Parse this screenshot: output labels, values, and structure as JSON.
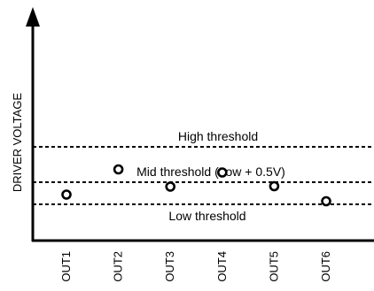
{
  "chart_data": {
    "type": "scatter",
    "title": "",
    "xlabel": "",
    "ylabel": "DRIVER VOLTAGE",
    "categories": [
      "OUT1",
      "OUT2",
      "OUT3",
      "OUT4",
      "OUT5",
      "OUT6"
    ],
    "values": [
      0.22,
      0.79,
      0.4,
      0.72,
      0.41,
      0.07
    ],
    "ylim": [
      0,
      1.6
    ],
    "grid": false,
    "legend": "none",
    "marker": "hollow-circle",
    "thresholds": [
      {
        "label": "High threshold",
        "value": 1.3,
        "label_position": "above"
      },
      {
        "label": "Mid threshold (Low + 0.5V)",
        "value": 0.5,
        "label_position": "above"
      },
      {
        "label": "Low threshold",
        "value": 0.0,
        "label_position": "below"
      }
    ],
    "colors": {
      "axis": "#000000",
      "marker": "#000000",
      "threshold_line": "#000000"
    }
  }
}
